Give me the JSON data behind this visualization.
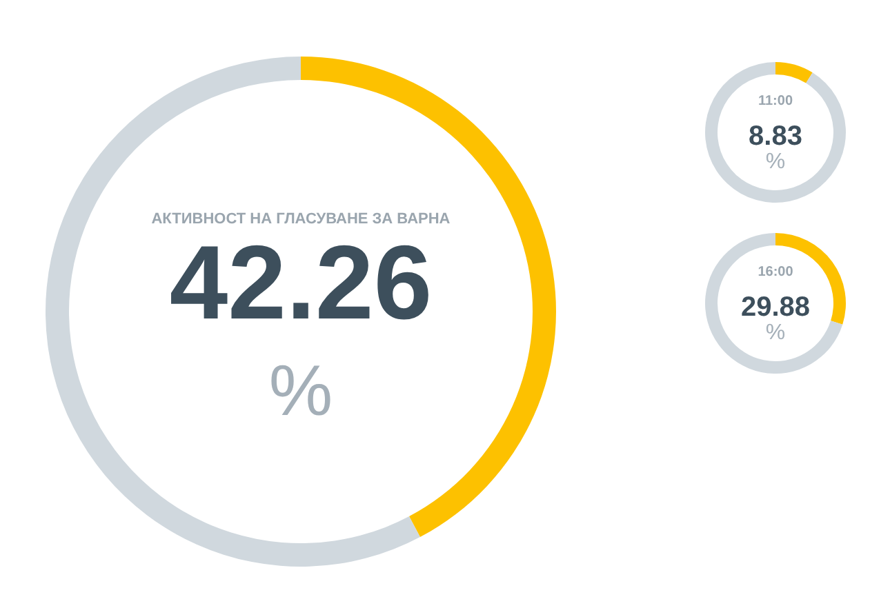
{
  "chart_data": [
    {
      "type": "donut",
      "title": "АКТИВНОСТ НА ГЛАСУВАНЕ ЗА ВАРНА",
      "categories": [
        null,
        null
      ],
      "values": [
        42.26,
        57.74
      ],
      "colors": [
        "#fdc100",
        "#d0d8de"
      ],
      "annotations": [
        "42.26",
        "%"
      ]
    },
    {
      "type": "donut",
      "title": "11:00",
      "categories": [
        null,
        null
      ],
      "values": [
        8.83,
        91.17
      ],
      "colors": [
        "#fdc100",
        "#d0d8de"
      ],
      "annotations": [
        "8.83",
        "%"
      ]
    },
    {
      "type": "donut",
      "title": "16:00",
      "categories": [
        null,
        null
      ],
      "values": [
        29.88,
        70.12
      ],
      "colors": [
        "#fdc100",
        "#d0d8de"
      ],
      "annotations": [
        "29.88",
        "%"
      ]
    }
  ]
}
